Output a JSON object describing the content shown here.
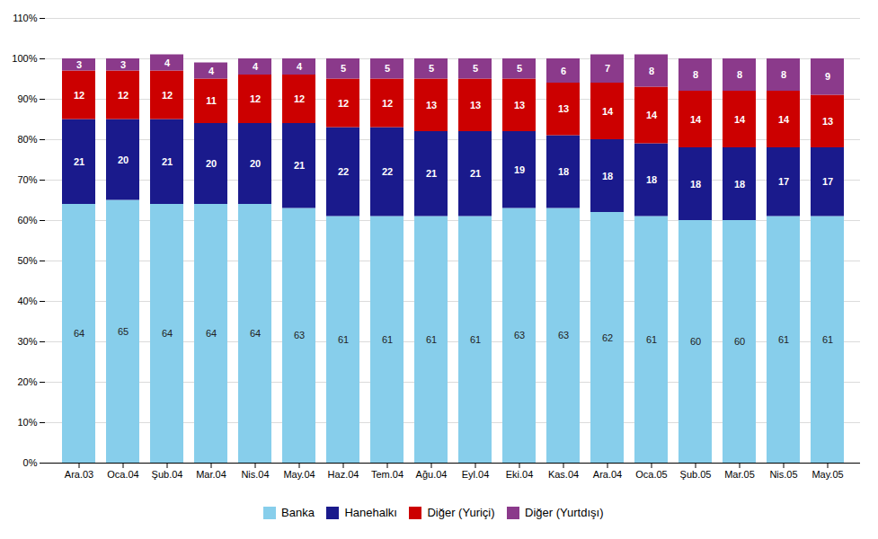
{
  "chart_data": {
    "type": "bar",
    "stacked": true,
    "data_labels": true,
    "grid": true,
    "legend": "bottom",
    "categories": [
      "Ara.03",
      "Oca.04",
      "Şub.04",
      "Mar.04",
      "Nis.04",
      "May.04",
      "Haz.04",
      "Tem.04",
      "Ağu.04",
      "Eyl.04",
      "Eki.04",
      "Kas.04",
      "Ara.04",
      "Oca.05",
      "Şub.05",
      "Mar.05",
      "Nis.05",
      "May.05"
    ],
    "series": [
      {
        "name": "Banka",
        "color": "#87CEEB",
        "values": [
          64,
          65,
          64,
          64,
          64,
          63,
          61,
          61,
          61,
          61,
          63,
          63,
          62,
          61,
          60,
          60,
          61,
          61
        ]
      },
      {
        "name": "Hanehalkı",
        "color": "#1a1a8c",
        "values": [
          21,
          20,
          21,
          20,
          20,
          21,
          22,
          22,
          21,
          21,
          19,
          18,
          18,
          18,
          18,
          18,
          17,
          17
        ]
      },
      {
        "name": "Diğer (Yuriçi)",
        "color": "#cc0000",
        "values": [
          12,
          12,
          12,
          11,
          12,
          12,
          12,
          12,
          13,
          13,
          13,
          13,
          14,
          14,
          14,
          14,
          14,
          13
        ]
      },
      {
        "name": "Diğer (Yurtdışı)",
        "color": "#8b3a8b",
        "values": [
          3,
          3,
          4,
          4,
          4,
          4,
          5,
          5,
          5,
          5,
          5,
          6,
          7,
          8,
          8,
          8,
          8,
          9
        ]
      }
    ],
    "ylim": [
      0,
      110
    ],
    "yticks": [
      {
        "value": 0,
        "label": "0%"
      },
      {
        "value": 10,
        "label": "10%"
      },
      {
        "value": 20,
        "label": "20%"
      },
      {
        "value": 30,
        "label": "30%"
      },
      {
        "value": 40,
        "label": "40%"
      },
      {
        "value": 50,
        "label": "50%"
      },
      {
        "value": 60,
        "label": "60%"
      },
      {
        "value": 70,
        "label": "70%"
      },
      {
        "value": 80,
        "label": "80%"
      },
      {
        "value": 90,
        "label": "90%"
      },
      {
        "value": 100,
        "label": "100%"
      },
      {
        "value": 110,
        "label": "110%"
      }
    ]
  }
}
